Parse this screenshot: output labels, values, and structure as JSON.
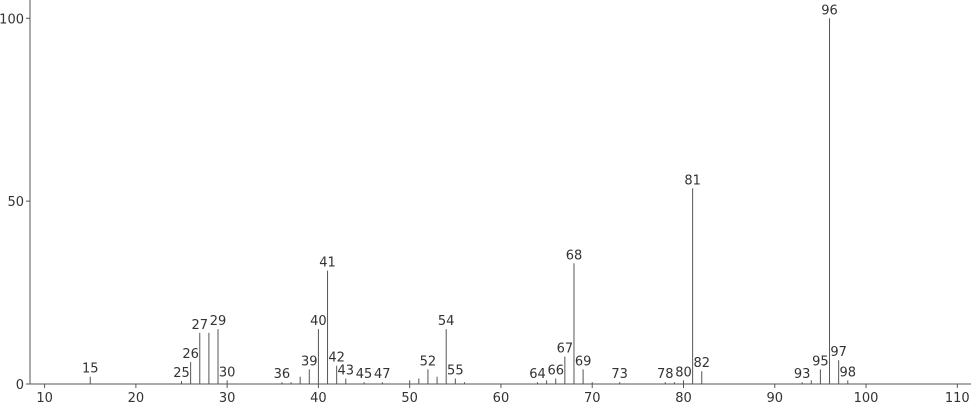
{
  "chart_data": {
    "type": "stick",
    "x": [
      15,
      25,
      26,
      27,
      28,
      29,
      30,
      36,
      37,
      38,
      39,
      40,
      41,
      42,
      43,
      45,
      47,
      50,
      51,
      52,
      53,
      54,
      55,
      56,
      64,
      65,
      66,
      67,
      68,
      69,
      70,
      73,
      78,
      79,
      80,
      81,
      82,
      93,
      94,
      95,
      96,
      97,
      98
    ],
    "values": [
      2,
      0.8,
      6,
      14,
      14,
      15,
      1,
      0.5,
      0.5,
      2,
      4,
      15,
      31,
      5,
      1.5,
      0.5,
      0.5,
      1,
      1.5,
      4,
      2,
      15,
      1.5,
      0.5,
      0.5,
      1,
      1.5,
      7.5,
      33,
      4,
      0.5,
      0.5,
      0.5,
      0.5,
      1,
      53.5,
      3.5,
      0.5,
      1,
      4,
      100,
      6.5,
      1
    ],
    "point_labels": [
      15,
      25,
      26,
      27,
      null,
      29,
      30,
      36,
      null,
      null,
      39,
      40,
      41,
      42,
      43,
      45,
      47,
      null,
      null,
      52,
      null,
      54,
      55,
      null,
      64,
      null,
      66,
      67,
      68,
      69,
      null,
      73,
      78,
      null,
      80,
      81,
      82,
      93,
      null,
      95,
      96,
      97,
      98
    ],
    "color": "#555555",
    "xlim": [
      8.4,
      111.5
    ],
    "xticks": [
      10,
      20,
      30,
      40,
      50,
      60,
      70,
      80,
      90,
      100,
      110
    ],
    "ylim": [
      0,
      105
    ],
    "yticks": [
      0,
      50,
      100
    ]
  }
}
